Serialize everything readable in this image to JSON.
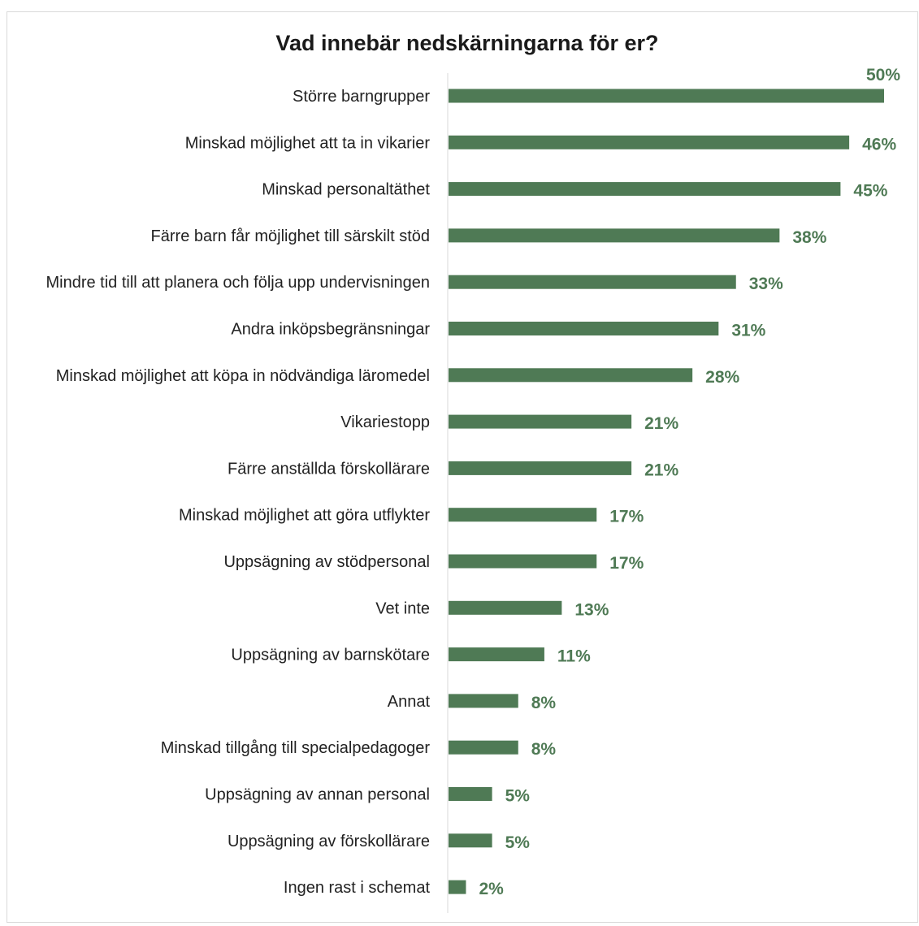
{
  "chart_data": {
    "type": "bar",
    "orientation": "horizontal",
    "title": "Vad innebär nedskärningarna för er?",
    "categories": [
      "Större barngrupper",
      "Minskad möjlighet att ta in vikarier",
      "Minskad personaltäthet",
      "Färre barn får möjlighet till särskilt stöd",
      "Mindre tid till att planera och följa upp undervisningen",
      "Andra inköpsbegränsningar",
      "Minskad möjlighet att köpa in nödvändiga läromedel",
      "Vikariestopp",
      "Färre anställda förskollärare",
      "Minskad möjlighet att göra utflykter",
      "Uppsägning av stödpersonal",
      "Vet inte",
      "Uppsägning av barnskötare",
      "Annat",
      "Minskad tillgång till specialpedagoger",
      "Uppsägning av annan personal",
      "Uppsägning av förskollärare",
      "Ingen rast i schemat"
    ],
    "values": [
      50,
      46,
      45,
      38,
      33,
      31,
      28,
      21,
      21,
      17,
      17,
      13,
      11,
      8,
      8,
      5,
      5,
      2
    ],
    "value_labels": [
      "50%",
      "46%",
      "45%",
      "38%",
      "33%",
      "31%",
      "28%",
      "21%",
      "21%",
      "17%",
      "17%",
      "13%",
      "11%",
      "8%",
      "8%",
      "5%",
      "5%",
      "2%"
    ],
    "unit": "%",
    "xlim": [
      0,
      50
    ],
    "grid": false,
    "legend": "none",
    "bar_color": "#4f7a55",
    "label_color": "#4f7a55"
  }
}
